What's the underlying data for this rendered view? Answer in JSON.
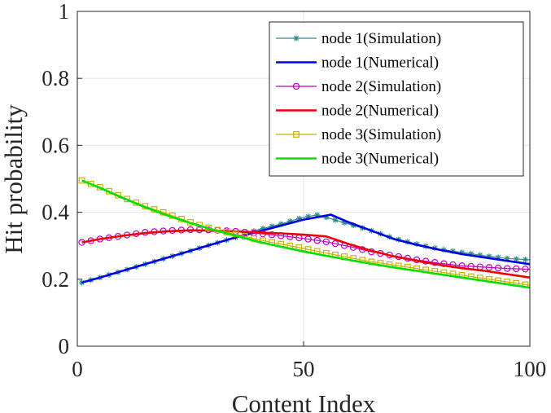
{
  "chart_data": {
    "type": "line",
    "title": "",
    "xlabel": "Content Index",
    "ylabel": "Hit probability",
    "xlim": [
      0,
      100
    ],
    "ylim": [
      0,
      1
    ],
    "xticks": [
      0,
      50,
      100
    ],
    "yticks": [
      0,
      0.2,
      0.4,
      0.6,
      0.8,
      1
    ],
    "ytick_labels": [
      "0",
      "0.2",
      "0.4",
      "0.6",
      "0.8",
      "1"
    ],
    "grid": true,
    "legend_position": "top-right",
    "series": [
      {
        "name": "node 1(Simulation)",
        "color": "#2e8b8b",
        "marker": "asterisk",
        "x": [
          1,
          5,
          10,
          15,
          20,
          25,
          30,
          35,
          40,
          45,
          50,
          53,
          55,
          60,
          65,
          70,
          75,
          80,
          85,
          90,
          95,
          100
        ],
        "y": [
          0.19,
          0.205,
          0.225,
          0.245,
          0.265,
          0.285,
          0.305,
          0.325,
          0.348,
          0.365,
          0.385,
          0.392,
          0.385,
          0.365,
          0.345,
          0.322,
          0.305,
          0.29,
          0.28,
          0.27,
          0.262,
          0.258
        ]
      },
      {
        "name": "node 1(Numerical)",
        "color": "#0000e0",
        "marker": "none",
        "x": [
          1,
          5,
          10,
          15,
          20,
          25,
          30,
          35,
          40,
          45,
          50,
          55,
          56,
          60,
          65,
          70,
          75,
          80,
          85,
          90,
          95,
          100
        ],
        "y": [
          0.19,
          0.205,
          0.225,
          0.245,
          0.265,
          0.285,
          0.305,
          0.325,
          0.342,
          0.36,
          0.378,
          0.39,
          0.393,
          0.37,
          0.345,
          0.32,
          0.303,
          0.288,
          0.275,
          0.265,
          0.255,
          0.245
        ]
      },
      {
        "name": "node 2(Simulation)",
        "color": "#c000c0",
        "marker": "circle",
        "x": [
          1,
          5,
          10,
          15,
          20,
          25,
          30,
          35,
          40,
          45,
          50,
          55,
          60,
          65,
          70,
          75,
          80,
          85,
          90,
          95,
          100
        ],
        "y": [
          0.31,
          0.32,
          0.33,
          0.34,
          0.345,
          0.348,
          0.347,
          0.343,
          0.337,
          0.33,
          0.322,
          0.312,
          0.298,
          0.282,
          0.27,
          0.258,
          0.248,
          0.24,
          0.236,
          0.232,
          0.23
        ]
      },
      {
        "name": "node 2(Numerical)",
        "color": "#ee0000",
        "marker": "none",
        "x": [
          1,
          5,
          10,
          15,
          20,
          25,
          30,
          35,
          40,
          45,
          50,
          55,
          60,
          65,
          70,
          75,
          80,
          85,
          90,
          95,
          100
        ],
        "y": [
          0.31,
          0.32,
          0.33,
          0.338,
          0.343,
          0.346,
          0.345,
          0.343,
          0.34,
          0.337,
          0.333,
          0.328,
          0.305,
          0.285,
          0.268,
          0.255,
          0.243,
          0.233,
          0.225,
          0.215,
          0.205
        ]
      },
      {
        "name": "node 3(Simulation)",
        "color": "#c8b400",
        "marker": "square",
        "x": [
          1,
          5,
          10,
          15,
          20,
          25,
          30,
          35,
          40,
          45,
          50,
          55,
          60,
          65,
          70,
          75,
          80,
          85,
          90,
          95,
          100
        ],
        "y": [
          0.495,
          0.475,
          0.445,
          0.418,
          0.395,
          0.37,
          0.35,
          0.335,
          0.318,
          0.305,
          0.292,
          0.278,
          0.265,
          0.252,
          0.242,
          0.232,
          0.222,
          0.212,
          0.202,
          0.192,
          0.182
        ]
      },
      {
        "name": "node 3(Numerical)",
        "color": "#00e000",
        "marker": "none",
        "x": [
          1,
          5,
          10,
          15,
          20,
          25,
          30,
          35,
          40,
          45,
          50,
          55,
          60,
          65,
          70,
          75,
          80,
          85,
          90,
          95,
          100
        ],
        "y": [
          0.495,
          0.473,
          0.443,
          0.415,
          0.39,
          0.368,
          0.348,
          0.33,
          0.312,
          0.297,
          0.283,
          0.27,
          0.258,
          0.246,
          0.235,
          0.225,
          0.215,
          0.205,
          0.195,
          0.185,
          0.175
        ]
      }
    ]
  }
}
